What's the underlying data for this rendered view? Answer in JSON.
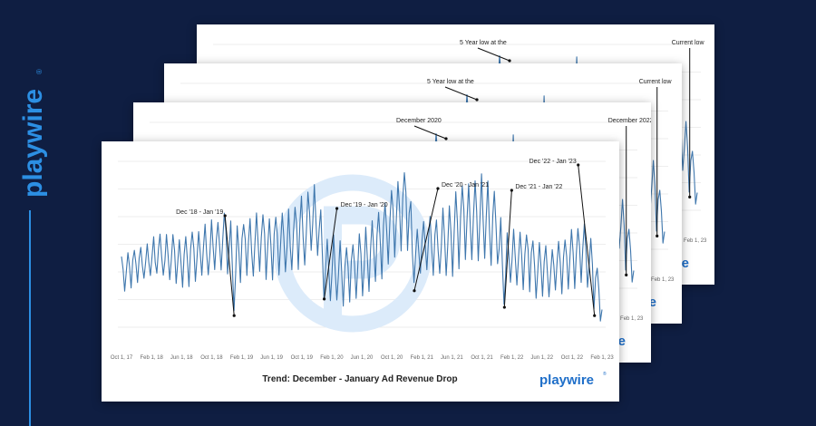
{
  "brand": {
    "name": "playwire",
    "registered": "®",
    "side_color": "#2c8fe3",
    "logo_color": "#1f6fc9",
    "background": "#0f1e42"
  },
  "colors": {
    "line": "#3f77ad",
    "grid": "#eeeeee",
    "watermark": "#dcebfa"
  },
  "back_cards": [
    {
      "annotations": [
        "5 Year low at the",
        "Current low"
      ],
      "tick_labels": [
        "Feb 1, 23"
      ]
    },
    {
      "annotations": [
        "5 Year low at the",
        "Current low"
      ],
      "tick_labels": [
        "Feb 1, 23"
      ]
    },
    {
      "annotations": [
        "December 2020",
        "December 2022"
      ],
      "tick_labels": [
        "Feb 1, 23"
      ]
    }
  ],
  "chart_data": {
    "type": "line",
    "title": "Trend: December - January Ad Revenue Drop",
    "xlabel": "",
    "ylabel": "",
    "x_ticks": [
      "Oct 1, 17",
      "Feb 1, 18",
      "Jun 1, 18",
      "Oct 1, 18",
      "Feb 1, 19",
      "Jun 1, 19",
      "Oct 1, 19",
      "Feb 1, 20",
      "Jun 1, 20",
      "Oct 1, 20",
      "Feb 1, 21",
      "Jun 1, 21",
      "Oct 1, 21",
      "Feb 1, 22",
      "Jun 1, 22",
      "Oct 1, 22",
      "Feb 1, 23"
    ],
    "y_ticks": [],
    "grid": true,
    "legend": "none",
    "annotations": [
      {
        "label": "Dec '18 - Jan '19",
        "x": "Jan 1, 19"
      },
      {
        "label": "Dec '19 - Jan '20",
        "x": "Jan 1, 20"
      },
      {
        "label": "Dec '20 - Jan '21",
        "x": "Jan 1, 21"
      },
      {
        "label": "Dec '21 - Jan '22",
        "x": "Jan 1, 22"
      },
      {
        "label": "Dec '22 - Jan '23",
        "x": "Jan 1, 23"
      }
    ],
    "envelope": {
      "x": [
        "Oct 1, 17",
        "Dec 1, 17",
        "Feb 1, 18",
        "Apr 1, 18",
        "Jun 1, 18",
        "Aug 1, 18",
        "Oct 1, 18",
        "Dec 1, 18",
        "Jan 1, 19",
        "Feb 1, 19",
        "Apr 1, 19",
        "Jun 1, 19",
        "Aug 1, 19",
        "Oct 1, 19",
        "Dec 1, 19",
        "Jan 1, 20",
        "Feb 1, 20",
        "Apr 1, 20",
        "Jun 1, 20",
        "Aug 1, 20",
        "Oct 1, 20",
        "Dec 1, 20",
        "Jan 1, 21",
        "Feb 1, 21",
        "Apr 1, 21",
        "Jun 1, 21",
        "Aug 1, 21",
        "Oct 1, 21",
        "Dec 1, 21",
        "Jan 1, 22",
        "Feb 1, 22",
        "Apr 1, 22",
        "Jun 1, 22",
        "Aug 1, 22",
        "Oct 1, 22",
        "Dec 1, 22",
        "Jan 1, 23",
        "Feb 1, 23"
      ],
      "high": [
        0.45,
        0.5,
        0.55,
        0.58,
        0.55,
        0.6,
        0.65,
        0.72,
        0.6,
        0.66,
        0.7,
        0.68,
        0.7,
        0.8,
        0.9,
        0.55,
        0.6,
        0.5,
        0.58,
        0.7,
        0.85,
        0.98,
        0.6,
        0.66,
        0.68,
        0.8,
        0.9,
        0.95,
        0.82,
        0.55,
        0.62,
        0.6,
        0.5,
        0.52,
        0.62,
        0.66,
        0.45,
        0.25
      ],
      "low": [
        0.2,
        0.25,
        0.28,
        0.25,
        0.23,
        0.25,
        0.3,
        0.33,
        0.05,
        0.25,
        0.3,
        0.28,
        0.28,
        0.35,
        0.45,
        0.15,
        0.15,
        0.12,
        0.18,
        0.25,
        0.35,
        0.45,
        0.2,
        0.3,
        0.28,
        0.3,
        0.38,
        0.4,
        0.35,
        0.1,
        0.25,
        0.2,
        0.15,
        0.18,
        0.22,
        0.25,
        0.05,
        0.0
      ]
    }
  }
}
